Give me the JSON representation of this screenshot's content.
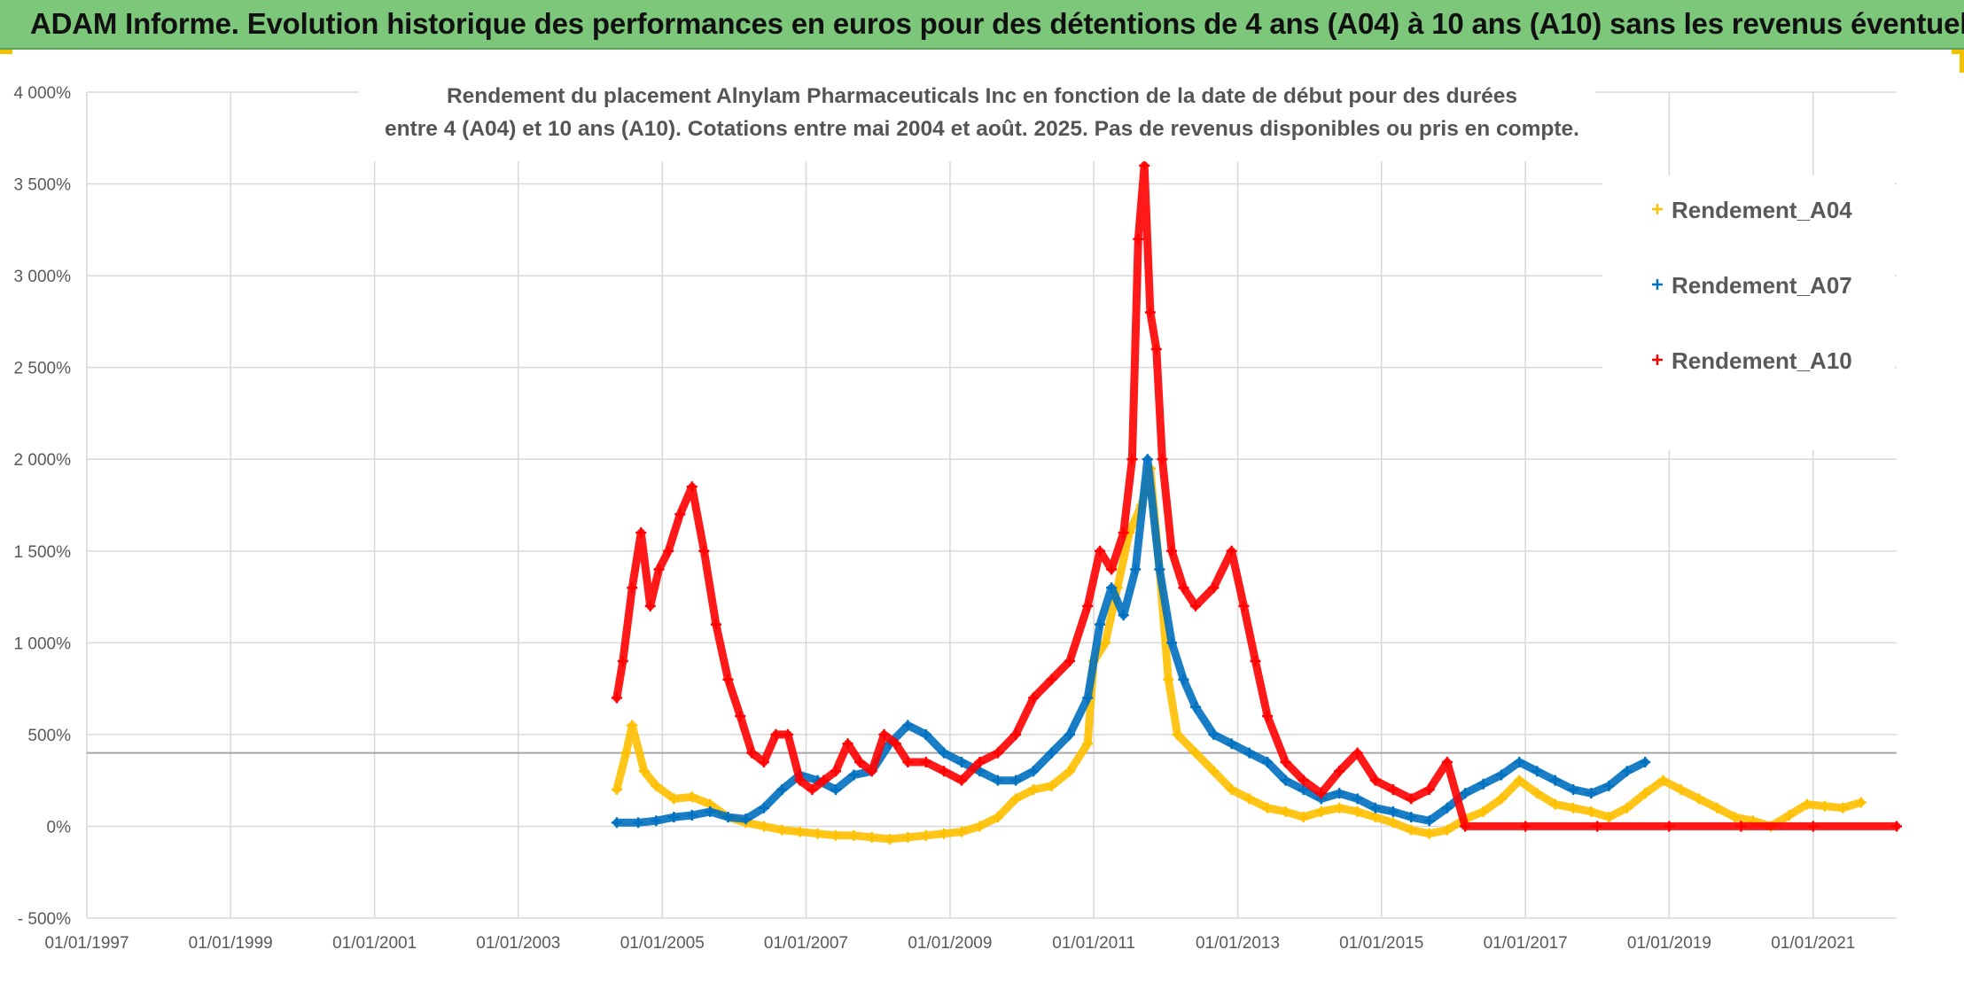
{
  "header": {
    "title": "ADAM Informe. Evolution historique des performances en euros pour des détentions de 4 ans (A04) à 10 ans (A10) sans les revenus éventuels"
  },
  "colors": {
    "header_bg": "#7dc77b",
    "a04": "#ffc000",
    "a07": "#0070c0",
    "a10": "#ff0000",
    "grid": "#d9d9d9"
  },
  "chart_data": {
    "type": "scatter",
    "title_line1": "Rendement du placement Alnylam Pharmaceuticals Inc en fonction de la date de début pour des durées",
    "title_line2": "entre 4 (A04) et 10 ans (A10). Cotations entre mai 2004 et août. 2025. Pas de revenus disponibles ou pris en compte.",
    "xlim": [
      "1997-01-01",
      "2022-03-01"
    ],
    "ylim": [
      -500,
      4000
    ],
    "y_ticks": [
      {
        "v": -500,
        "label": "- 500%"
      },
      {
        "v": 0,
        "label": "0%"
      },
      {
        "v": 500,
        "label": "500%"
      },
      {
        "v": 1000,
        "label": "1 000%"
      },
      {
        "v": 1500,
        "label": "1 500%"
      },
      {
        "v": 2000,
        "label": "2 000%"
      },
      {
        "v": 2500,
        "label": "2 500%"
      },
      {
        "v": 3000,
        "label": "3 000%"
      },
      {
        "v": 3500,
        "label": "3 500%"
      },
      {
        "v": 4000,
        "label": "4 000%"
      }
    ],
    "x_ticks": [
      {
        "v": "1997-01-01",
        "label": "01/01/1997"
      },
      {
        "v": "1999-01-01",
        "label": "01/01/1999"
      },
      {
        "v": "2001-01-01",
        "label": "01/01/2001"
      },
      {
        "v": "2003-01-01",
        "label": "01/01/2003"
      },
      {
        "v": "2005-01-01",
        "label": "01/01/2005"
      },
      {
        "v": "2007-01-01",
        "label": "01/01/2007"
      },
      {
        "v": "2009-01-01",
        "label": "01/01/2009"
      },
      {
        "v": "2011-01-01",
        "label": "01/01/2011"
      },
      {
        "v": "2013-01-01",
        "label": "01/01/2013"
      },
      {
        "v": "2015-01-01",
        "label": "01/01/2015"
      },
      {
        "v": "2017-01-01",
        "label": "01/01/2017"
      },
      {
        "v": "2019-01-01",
        "label": "01/01/2019"
      },
      {
        "v": "2021-01-01",
        "label": "01/01/2021"
      }
    ],
    "reference_line": 400,
    "grid": true,
    "legend_position": "top-right",
    "series": [
      {
        "name": "Rendement_A04",
        "color": "#ffc000",
        "points": [
          [
            "2004-05-15",
            200
          ],
          [
            "2004-07-01",
            400
          ],
          [
            "2004-08-01",
            550
          ],
          [
            "2004-10-01",
            300
          ],
          [
            "2004-12-01",
            220
          ],
          [
            "2005-03-01",
            150
          ],
          [
            "2005-06-01",
            160
          ],
          [
            "2005-09-01",
            120
          ],
          [
            "2005-12-01",
            50
          ],
          [
            "2006-03-01",
            20
          ],
          [
            "2006-06-01",
            0
          ],
          [
            "2006-09-01",
            -20
          ],
          [
            "2006-12-01",
            -30
          ],
          [
            "2007-03-01",
            -40
          ],
          [
            "2007-06-01",
            -50
          ],
          [
            "2007-09-01",
            -50
          ],
          [
            "2007-12-01",
            -60
          ],
          [
            "2008-03-01",
            -70
          ],
          [
            "2008-06-01",
            -60
          ],
          [
            "2008-09-01",
            -50
          ],
          [
            "2008-12-01",
            -40
          ],
          [
            "2009-03-01",
            -30
          ],
          [
            "2009-06-01",
            0
          ],
          [
            "2009-09-01",
            50
          ],
          [
            "2009-12-01",
            150
          ],
          [
            "2010-03-01",
            200
          ],
          [
            "2010-06-01",
            220
          ],
          [
            "2010-09-01",
            300
          ],
          [
            "2010-12-01",
            450
          ],
          [
            "2011-01-01",
            900
          ],
          [
            "2011-03-01",
            1000
          ],
          [
            "2011-05-01",
            1300
          ],
          [
            "2011-07-01",
            1600
          ],
          [
            "2011-09-01",
            1750
          ],
          [
            "2011-10-15",
            1950
          ],
          [
            "2011-12-01",
            1400
          ],
          [
            "2012-01-15",
            800
          ],
          [
            "2012-03-01",
            500
          ],
          [
            "2012-06-01",
            400
          ],
          [
            "2012-09-01",
            300
          ],
          [
            "2012-12-01",
            200
          ],
          [
            "2013-03-01",
            150
          ],
          [
            "2013-06-01",
            100
          ],
          [
            "2013-09-01",
            80
          ],
          [
            "2013-12-01",
            50
          ],
          [
            "2014-03-01",
            80
          ],
          [
            "2014-06-01",
            100
          ],
          [
            "2014-09-01",
            80
          ],
          [
            "2014-12-01",
            50
          ],
          [
            "2015-03-01",
            20
          ],
          [
            "2015-06-01",
            -20
          ],
          [
            "2015-09-01",
            -40
          ],
          [
            "2015-12-01",
            -20
          ],
          [
            "2016-03-01",
            40
          ],
          [
            "2016-06-01",
            80
          ],
          [
            "2016-09-01",
            150
          ],
          [
            "2016-12-01",
            250
          ],
          [
            "2017-03-01",
            180
          ],
          [
            "2017-06-01",
            120
          ],
          [
            "2017-09-01",
            100
          ],
          [
            "2017-12-01",
            80
          ],
          [
            "2018-03-01",
            50
          ],
          [
            "2018-06-01",
            100
          ],
          [
            "2018-09-01",
            180
          ],
          [
            "2018-12-01",
            250
          ],
          [
            "2019-03-01",
            200
          ],
          [
            "2019-06-01",
            150
          ],
          [
            "2019-09-01",
            100
          ],
          [
            "2019-12-01",
            50
          ],
          [
            "2020-03-01",
            30
          ],
          [
            "2020-06-01",
            0
          ],
          [
            "2020-09-01",
            60
          ],
          [
            "2020-12-01",
            120
          ],
          [
            "2021-03-01",
            110
          ],
          [
            "2021-06-01",
            100
          ],
          [
            "2021-09-01",
            130
          ]
        ]
      },
      {
        "name": "Rendement_A07",
        "color": "#0070c0",
        "points": [
          [
            "2004-05-15",
            20
          ],
          [
            "2004-09-01",
            20
          ],
          [
            "2004-12-01",
            30
          ],
          [
            "2005-03-01",
            50
          ],
          [
            "2005-06-01",
            60
          ],
          [
            "2005-09-01",
            80
          ],
          [
            "2005-12-01",
            50
          ],
          [
            "2006-03-01",
            40
          ],
          [
            "2006-06-01",
            100
          ],
          [
            "2006-09-01",
            200
          ],
          [
            "2006-12-01",
            280
          ],
          [
            "2007-03-01",
            250
          ],
          [
            "2007-06-01",
            200
          ],
          [
            "2007-09-01",
            280
          ],
          [
            "2007-12-01",
            300
          ],
          [
            "2008-03-01",
            450
          ],
          [
            "2008-06-01",
            550
          ],
          [
            "2008-09-01",
            500
          ],
          [
            "2008-12-01",
            400
          ],
          [
            "2009-03-01",
            350
          ],
          [
            "2009-06-01",
            300
          ],
          [
            "2009-09-01",
            250
          ],
          [
            "2009-12-01",
            250
          ],
          [
            "2010-03-01",
            300
          ],
          [
            "2010-06-01",
            400
          ],
          [
            "2010-09-01",
            500
          ],
          [
            "2010-12-01",
            700
          ],
          [
            "2011-02-01",
            1100
          ],
          [
            "2011-04-01",
            1300
          ],
          [
            "2011-06-01",
            1150
          ],
          [
            "2011-08-01",
            1400
          ],
          [
            "2011-10-01",
            2000
          ],
          [
            "2011-12-01",
            1400
          ],
          [
            "2012-02-01",
            1000
          ],
          [
            "2012-04-01",
            800
          ],
          [
            "2012-06-01",
            650
          ],
          [
            "2012-09-01",
            500
          ],
          [
            "2012-12-01",
            450
          ],
          [
            "2013-03-01",
            400
          ],
          [
            "2013-06-01",
            350
          ],
          [
            "2013-09-01",
            250
          ],
          [
            "2013-12-01",
            200
          ],
          [
            "2014-03-01",
            150
          ],
          [
            "2014-06-01",
            180
          ],
          [
            "2014-09-01",
            150
          ],
          [
            "2014-12-01",
            100
          ],
          [
            "2015-03-01",
            80
          ],
          [
            "2015-06-01",
            50
          ],
          [
            "2015-09-01",
            30
          ],
          [
            "2015-12-01",
            100
          ],
          [
            "2016-03-01",
            180
          ],
          [
            "2016-06-01",
            230
          ],
          [
            "2016-09-01",
            280
          ],
          [
            "2016-12-01",
            350
          ],
          [
            "2017-03-01",
            300
          ],
          [
            "2017-06-01",
            250
          ],
          [
            "2017-09-01",
            200
          ],
          [
            "2017-12-01",
            180
          ],
          [
            "2018-03-01",
            220
          ],
          [
            "2018-06-01",
            300
          ],
          [
            "2018-09-01",
            350
          ]
        ]
      },
      {
        "name": "Rendement_A10",
        "color": "#ff0000",
        "points": [
          [
            "2004-05-15",
            700
          ],
          [
            "2004-06-15",
            900
          ],
          [
            "2004-08-01",
            1300
          ],
          [
            "2004-09-15",
            1600
          ],
          [
            "2004-11-01",
            1200
          ],
          [
            "2004-12-15",
            1400
          ],
          [
            "2005-02-01",
            1500
          ],
          [
            "2005-04-01",
            1700
          ],
          [
            "2005-06-01",
            1850
          ],
          [
            "2005-08-01",
            1500
          ],
          [
            "2005-10-01",
            1100
          ],
          [
            "2005-12-01",
            800
          ],
          [
            "2006-02-01",
            600
          ],
          [
            "2006-04-01",
            400
          ],
          [
            "2006-06-01",
            350
          ],
          [
            "2006-08-01",
            500
          ],
          [
            "2006-10-01",
            500
          ],
          [
            "2006-12-01",
            250
          ],
          [
            "2007-02-01",
            200
          ],
          [
            "2007-04-01",
            250
          ],
          [
            "2007-06-01",
            300
          ],
          [
            "2007-08-01",
            450
          ],
          [
            "2007-10-01",
            350
          ],
          [
            "2007-12-01",
            300
          ],
          [
            "2008-02-01",
            500
          ],
          [
            "2008-04-01",
            450
          ],
          [
            "2008-06-01",
            350
          ],
          [
            "2008-09-01",
            350
          ],
          [
            "2008-12-01",
            300
          ],
          [
            "2009-03-01",
            250
          ],
          [
            "2009-06-01",
            350
          ],
          [
            "2009-09-01",
            400
          ],
          [
            "2009-12-01",
            500
          ],
          [
            "2010-03-01",
            700
          ],
          [
            "2010-06-01",
            800
          ],
          [
            "2010-09-01",
            900
          ],
          [
            "2010-12-01",
            1200
          ],
          [
            "2011-02-01",
            1500
          ],
          [
            "2011-04-01",
            1400
          ],
          [
            "2011-06-01",
            1600
          ],
          [
            "2011-07-15",
            2000
          ],
          [
            "2011-08-15",
            3200
          ],
          [
            "2011-09-15",
            3600
          ],
          [
            "2011-10-15",
            2800
          ],
          [
            "2011-11-15",
            2600
          ],
          [
            "2011-12-15",
            2000
          ],
          [
            "2012-02-01",
            1500
          ],
          [
            "2012-04-01",
            1300
          ],
          [
            "2012-06-01",
            1200
          ],
          [
            "2012-09-01",
            1300
          ],
          [
            "2012-12-01",
            1500
          ],
          [
            "2013-02-01",
            1200
          ],
          [
            "2013-04-01",
            900
          ],
          [
            "2013-06-01",
            600
          ],
          [
            "2013-09-01",
            350
          ],
          [
            "2013-12-01",
            250
          ],
          [
            "2014-03-01",
            180
          ],
          [
            "2014-06-01",
            300
          ],
          [
            "2014-09-01",
            400
          ],
          [
            "2014-12-01",
            250
          ],
          [
            "2015-03-01",
            200
          ],
          [
            "2015-06-01",
            150
          ],
          [
            "2015-09-01",
            200
          ],
          [
            "2015-12-01",
            350
          ],
          [
            "2016-03-01",
            0
          ],
          [
            "2017-01-01",
            0
          ],
          [
            "2018-01-01",
            0
          ],
          [
            "2019-01-01",
            0
          ],
          [
            "2020-01-01",
            0
          ],
          [
            "2021-01-01",
            0
          ],
          [
            "2022-03-01",
            0
          ]
        ]
      }
    ]
  }
}
